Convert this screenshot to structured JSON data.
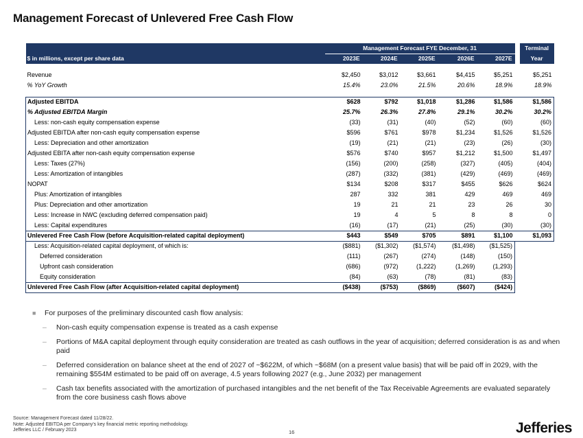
{
  "title": "Management Forecast of Unlevered Free Cash Flow",
  "table": {
    "group_header": "Management Forecast FYE December, 31",
    "terminal_header_1": "Terminal",
    "terminal_header_2": "Year",
    "units_label": "$ in millions, except per share data",
    "years": [
      "2023E",
      "2024E",
      "2025E",
      "2026E",
      "2027E"
    ],
    "rows": [
      {
        "label": "Revenue",
        "vals": [
          "$2,450",
          "$3,012",
          "$3,661",
          "$4,415",
          "$5,251"
        ],
        "term": "$5,251"
      },
      {
        "label": "% YoY Growth",
        "vals": [
          "15.4%",
          "23.0%",
          "21.5%",
          "20.6%",
          "18.9%"
        ],
        "term": "18.9%"
      },
      {
        "label": "Adjusted EBITDA",
        "vals": [
          "$628",
          "$792",
          "$1,018",
          "$1,286",
          "$1,586"
        ],
        "term": "$1,586"
      },
      {
        "label": "% Adjusted EBITDA Margin",
        "vals": [
          "25.7%",
          "26.3%",
          "27.8%",
          "29.1%",
          "30.2%"
        ],
        "term": "30.2%"
      },
      {
        "label": "Less: non-cash equity compensation expense",
        "vals": [
          "(33)",
          "(31)",
          "(40)",
          "(52)",
          "(60)"
        ],
        "term": "(60)"
      },
      {
        "label": "Adjusted EBITDA after non-cash equity compensation expense",
        "vals": [
          "$596",
          "$761",
          "$978",
          "$1,234",
          "$1,526"
        ],
        "term": "$1,526"
      },
      {
        "label": "Less: Depreciation and other amortization",
        "vals": [
          "(19)",
          "(21)",
          "(21)",
          "(23)",
          "(26)"
        ],
        "term": "(30)"
      },
      {
        "label": "Adjusted EBITA after non-cash equity compensation expense",
        "vals": [
          "$576",
          "$740",
          "$957",
          "$1,212",
          "$1,500"
        ],
        "term": "$1,497"
      },
      {
        "label": "Less: Taxes (27%)",
        "vals": [
          "(156)",
          "(200)",
          "(258)",
          "(327)",
          "(405)"
        ],
        "term": "(404)"
      },
      {
        "label": "Less: Amortization of intangibles",
        "vals": [
          "(287)",
          "(332)",
          "(381)",
          "(429)",
          "(469)"
        ],
        "term": "(469)"
      },
      {
        "label": "NOPAT",
        "vals": [
          "$134",
          "$208",
          "$317",
          "$455",
          "$626"
        ],
        "term": "$624"
      },
      {
        "label": "Plus: Amortization of intangibles",
        "vals": [
          "287",
          "332",
          "381",
          "429",
          "469"
        ],
        "term": "469"
      },
      {
        "label": "Plus: Depreciation and other amortization",
        "vals": [
          "19",
          "21",
          "21",
          "23",
          "26"
        ],
        "term": "30"
      },
      {
        "label": "Less: Increase in NWC (excluding deferred compensation paid)",
        "vals": [
          "19",
          "4",
          "5",
          "8",
          "8"
        ],
        "term": "0"
      },
      {
        "label": "Less: Capital expenditures",
        "vals": [
          "(16)",
          "(17)",
          "(21)",
          "(25)",
          "(30)"
        ],
        "term": "(30)"
      },
      {
        "label": "Unlevered Free Cash Flow (before Acquisition-related capital deployment)",
        "vals": [
          "$443",
          "$549",
          "$705",
          "$891",
          "$1,100"
        ],
        "term": "$1,093"
      },
      {
        "label": "Less: Acquisition-related capital deployment, of which is:",
        "vals": [
          "($881)",
          "($1,302)",
          "($1,574)",
          "($1,498)",
          "($1,525)"
        ],
        "term": ""
      },
      {
        "label": "Deferred consideration",
        "vals": [
          "(111)",
          "(267)",
          "(274)",
          "(148)",
          "(150)"
        ],
        "term": ""
      },
      {
        "label": "Upfront cash consideration",
        "vals": [
          "(686)",
          "(972)",
          "(1,222)",
          "(1,269)",
          "(1,293)"
        ],
        "term": ""
      },
      {
        "label": "Equity consideration",
        "vals": [
          "(84)",
          "(63)",
          "(78)",
          "(81)",
          "(83)"
        ],
        "term": ""
      },
      {
        "label": "Unlevered Free Cash Flow (after Acquisition-related capital deployment)",
        "vals": [
          "($438)",
          "($753)",
          "($869)",
          "($607)",
          "($424)"
        ],
        "term": ""
      }
    ]
  },
  "notes": {
    "intro": "For purposes of the preliminary discounted cash flow analysis:",
    "items": [
      "Non-cash equity compensation expense is treated as a cash expense",
      "Portions of M&A capital deployment through equity consideration are treated as cash outflows in the year of acquisition; deferred consideration is as and when paid",
      "Deferred consideration on balance sheet at the end of 2027 of ~$622M, of which ~$68M (on a present value basis) that will be paid off in 2029, with the remaining $554M estimated to be paid off on average, 4.5 years following 2027 (e.g., June 2032) per management",
      "Cash tax benefits associated with the amortization of purchased intangibles and the net benefit of the Tax Receivable Agreements are evaluated separately from the core business cash flows above"
    ]
  },
  "footer": {
    "line1": "Source: Management Forecast dated 11/28/22.",
    "line2": "Note: Adjusted EBITDA per Company's key financial metric reporting methodology.",
    "line3": "Jefferies LLC  /  February 2023",
    "page": "16",
    "logo": "Jefferies"
  }
}
